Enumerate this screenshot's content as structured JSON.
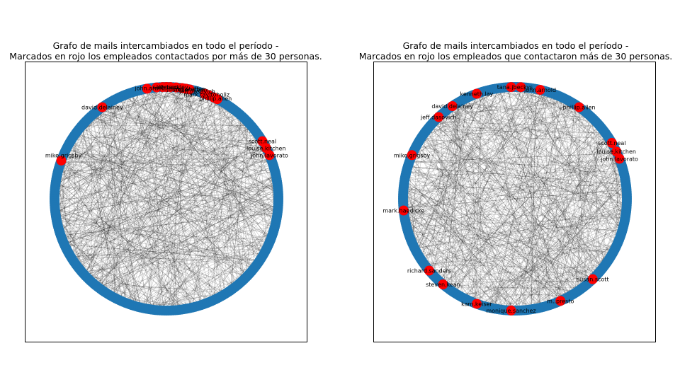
{
  "chart_data": [
    {
      "type": "network",
      "layout": "circular",
      "title_line1": "Grafo de mails intercambiados en todo el período -",
      "title_line2": "Marcados en rojo los empleados contactados por más de 30 personas.",
      "node_color": "#1f77b4",
      "highlight_color": "#ff0000",
      "edge_color": "#000000",
      "highlighted": [
        {
          "name": "john.lavorato",
          "angle": 23
        },
        {
          "name": "louise.kitchen",
          "angle": 27
        },
        {
          "name": "scott.neal",
          "angle": 31
        },
        {
          "name": "phillip.allen",
          "angle": 63
        },
        {
          "name": "mark.taylor",
          "angle": 65
        },
        {
          "name": "jeff.dasovich",
          "angle": 68
        },
        {
          "name": "richard.shapiro",
          "angle": 70
        },
        {
          "name": "mike.grigsby",
          "angle": 160
        },
        {
          "name": "david.delainey",
          "angle": 125
        },
        {
          "name": "steven.kean",
          "angle": 78
        },
        {
          "name": "james.steffes",
          "angle": 80
        },
        {
          "name": "tana.jones",
          "angle": 82
        },
        {
          "name": "jeff.skilling",
          "angle": 85
        },
        {
          "name": "kenneth.lay",
          "angle": 88
        },
        {
          "name": "sally.beck",
          "angle": 90
        },
        {
          "name": "tim.belden",
          "angle": 92
        },
        {
          "name": "sara.shackleton",
          "angle": 95
        },
        {
          "name": "john.arnold",
          "angle": 100
        }
      ],
      "labels": [
        {
          "text": "john.lavorato",
          "angle": 23
        },
        {
          "text": "louise.kitchen",
          "angle": 27
        },
        {
          "text": "scott.neal",
          "angle": 31
        },
        {
          "text": "phillip.allen",
          "angle": 64
        },
        {
          "text": "mark.tayltoholiz",
          "angle": 69
        },
        {
          "text": "jeff.dasovich",
          "angle": 74
        },
        {
          "text": "steven.kean",
          "angle": 78
        },
        {
          "text": "james.steffes",
          "angle": 80
        },
        {
          "text": "johnarn.ley",
          "angle": 87
        },
        {
          "text": "sally.beck",
          "angle": 90
        },
        {
          "text": "john.arnold",
          "angle": 98
        },
        {
          "text": "david.delainey",
          "angle": 125
        },
        {
          "text": "mike.grigsby",
          "angle": 157
        }
      ]
    },
    {
      "type": "network",
      "layout": "circular",
      "title_line1": "Grafo de mails intercambiados en todo el período -",
      "title_line2": "Marcados en rojo los empleados que contactaron más de 30 personas.",
      "node_color": "#1f77b4",
      "highlight_color": "#ff0000",
      "edge_color": "#000000",
      "highlighted": [
        {
          "name": "john.lavorato",
          "angle": 21
        },
        {
          "name": "louise.kitchen",
          "angle": 25
        },
        {
          "name": "scott.neal",
          "angle": 30
        },
        {
          "name": "phillip.allen",
          "angle": 55
        },
        {
          "name": "john.arnold",
          "angle": 77
        },
        {
          "name": "sally.beck",
          "angle": 87
        },
        {
          "name": "tana.jones",
          "angle": 92
        },
        {
          "name": "kenneth.lay",
          "angle": 110
        },
        {
          "name": "david.delainey",
          "angle": 124
        },
        {
          "name": "jeff.dasovich",
          "angle": 133
        },
        {
          "name": "mike.grigsby",
          "angle": 157
        },
        {
          "name": "mark.haedicke",
          "angle": 186
        },
        {
          "name": "richard.sanders",
          "angle": 220
        },
        {
          "name": "steven.kean",
          "angle": 230
        },
        {
          "name": "kam.keiser",
          "angle": 250
        },
        {
          "name": "monique.sanchez",
          "angle": 268
        },
        {
          "name": "m..presto",
          "angle": 294
        },
        {
          "name": "susan.scott",
          "angle": 314
        }
      ],
      "labels": [
        {
          "text": "john.lavorato",
          "angle": 21
        },
        {
          "text": "louise.kitchen",
          "angle": 25
        },
        {
          "text": "scott.neal",
          "angle": 30
        },
        {
          "text": "phillip.allen",
          "angle": 55
        },
        {
          "text": "john.arnold",
          "angle": 77
        },
        {
          "text": "tana.jbeckys",
          "angle": 90
        },
        {
          "text": "kenneth.lay",
          "angle": 110
        },
        {
          "text": "david.delainey",
          "angle": 124
        },
        {
          "text": "jeff.dasovich",
          "angle": 133
        },
        {
          "text": "mike.grigsby",
          "angle": 157
        },
        {
          "text": "mark.haedicke",
          "angle": 186
        },
        {
          "text": "richard.sanders",
          "angle": 220
        },
        {
          "text": "steven.kean",
          "angle": 230
        },
        {
          "text": "kam.keiser",
          "angle": 250
        },
        {
          "text": "monique.sanchez",
          "angle": 268
        },
        {
          "text": "m..presto",
          "angle": 294
        },
        {
          "text": "susan.scott",
          "angle": 314
        }
      ]
    }
  ]
}
